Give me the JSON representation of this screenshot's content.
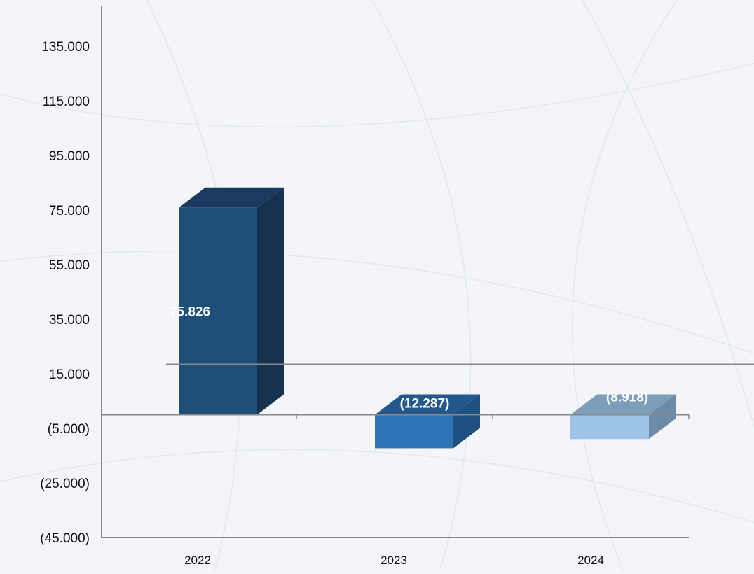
{
  "chart_data": {
    "type": "bar",
    "style": "3d-waterfall",
    "categories": [
      "2022",
      "2023",
      "2024"
    ],
    "values": [
      75.826,
      -12.287,
      -8.918
    ],
    "data_labels": [
      "75.826",
      "(12.287)",
      "(8.918)"
    ],
    "bar_ranges": [
      [
        0,
        75.826
      ],
      [
        -12.287,
        0
      ],
      [
        -8.918,
        0
      ]
    ],
    "y_ticks": [
      "135.000",
      "115.000",
      "95.000",
      "75.000",
      "55.000",
      "35.000",
      "15.000",
      "(5.000)",
      "(25.000)",
      "(45.000)"
    ],
    "y_tick_values": [
      135,
      115,
      95,
      75,
      55,
      35,
      15,
      -5,
      -25,
      -45
    ],
    "ylim": [
      -45,
      135
    ],
    "title": "",
    "xlabel": "",
    "ylabel": "",
    "grid": false,
    "legend": "none",
    "colors": {
      "2022": {
        "front": "#1f4e79",
        "side": "#17324f",
        "top": "#1a3b5f"
      },
      "2023": {
        "front": "#2e75b6",
        "side": "#1d4f80",
        "top": "#23588d"
      },
      "2024": {
        "front": "#9dc3e6",
        "side": "#6d8aa8",
        "top": "#7d9dbb"
      },
      "axis": "#888888",
      "background": "#f4f5f8"
    }
  }
}
